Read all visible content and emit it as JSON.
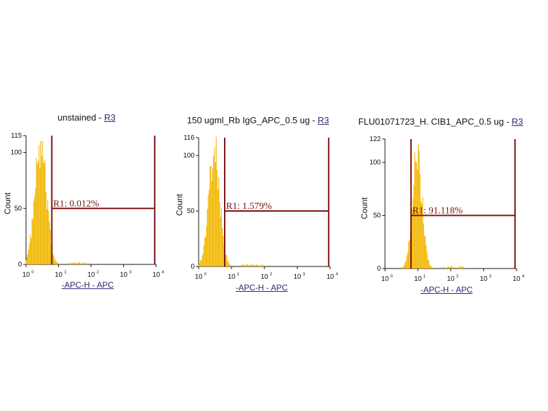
{
  "chart_data": [
    {
      "type": "histogram",
      "title": "unstained",
      "gate_link": "R3",
      "title_separator": " - ",
      "xlabel": "-APC-H - APC",
      "ylabel": "Count",
      "xscale": "log",
      "xlim": [
        1,
        10000
      ],
      "ylim": [
        0,
        115
      ],
      "y_ticks": [
        "0",
        "50",
        "100",
        "115"
      ],
      "y_tick_values": [
        0,
        50,
        100,
        115
      ],
      "x_ticks": [
        "10",
        "10",
        "10",
        "10",
        "10"
      ],
      "x_tick_values": [
        1,
        10,
        100,
        1000,
        10000
      ],
      "gate": {
        "label": "R1: 0.012%",
        "start": 6.2,
        "end": 9000,
        "level": 50
      },
      "histogram_color": "#f2b700",
      "gate_color": "#7a1010",
      "peak_center": 2.8,
      "peak_height": 112,
      "peak_width": 0.18
    },
    {
      "type": "histogram",
      "title": "150 ugml_Rb IgG_APC_0.5 ug",
      "gate_link": "R3",
      "title_separator": " - ",
      "xlabel": "-APC-H - APC",
      "ylabel": "Count",
      "xscale": "log",
      "xlim": [
        1,
        10000
      ],
      "ylim": [
        0,
        116
      ],
      "y_ticks": [
        "0",
        "50",
        "100",
        "116"
      ],
      "y_tick_values": [
        0,
        50,
        100,
        116
      ],
      "x_ticks": [
        "10",
        "10",
        "10",
        "10",
        "10"
      ],
      "x_tick_values": [
        1,
        10,
        100,
        1000,
        10000
      ],
      "gate": {
        "label": "R1: 1.579%",
        "start": 6.2,
        "end": 9000,
        "level": 50
      },
      "histogram_color": "#f2b700",
      "gate_color": "#7a1010",
      "peak_center": 3.0,
      "peak_height": 113,
      "peak_width": 0.17
    },
    {
      "type": "histogram",
      "title": "FLU01071723_H. CIB1_APC_0.5 ug",
      "gate_link": "R3",
      "title_separator": " - ",
      "xlabel": "-APC-H - APC",
      "ylabel": "Count",
      "xscale": "log",
      "xlim": [
        1,
        10000
      ],
      "ylim": [
        0,
        122
      ],
      "y_ticks": [
        "0",
        "50",
        "100",
        "122"
      ],
      "y_tick_values": [
        0,
        50,
        100,
        122
      ],
      "x_ticks": [
        "10",
        "10",
        "10",
        "10",
        "10"
      ],
      "x_tick_values": [
        1,
        10,
        100,
        1000,
        10000
      ],
      "gate": {
        "label": "R1: 91.118%",
        "start": 6.2,
        "end": 9000,
        "level": 50
      },
      "histogram_color": "#f2b700",
      "gate_color": "#7a1010",
      "peak_center": 9.5,
      "peak_height": 118,
      "peak_width": 0.15
    }
  ]
}
